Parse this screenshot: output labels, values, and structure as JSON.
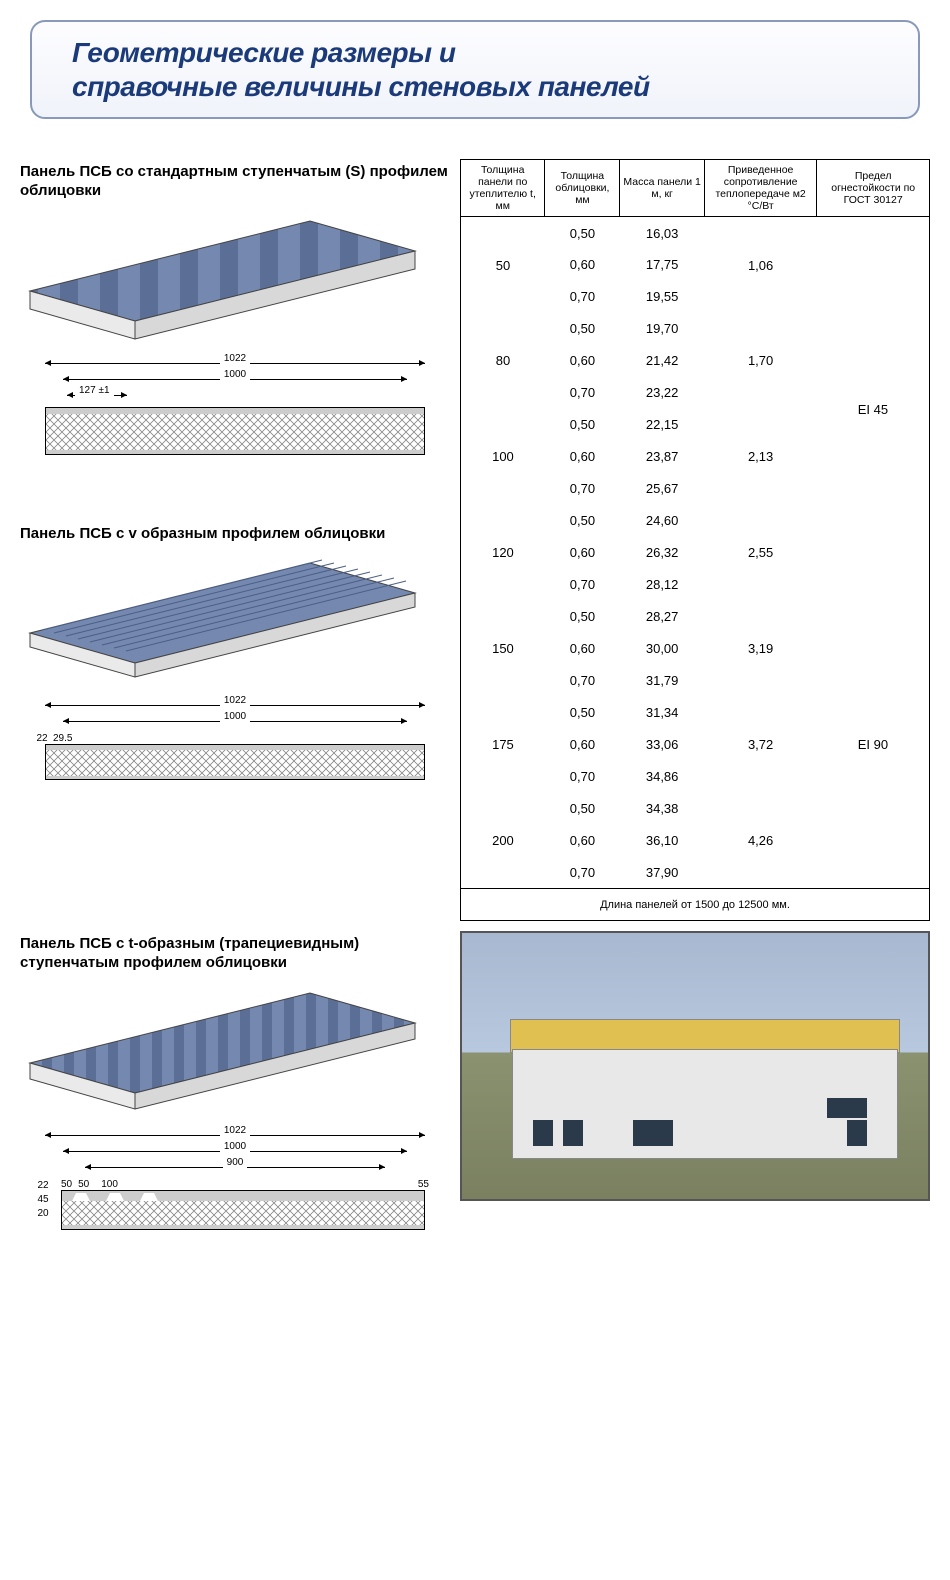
{
  "header": {
    "title_line1": "Геометрические размеры и",
    "title_line2": "справочные величины стеновых панелей"
  },
  "panels": [
    {
      "title": "Панель ПСБ со стандартным ступенчатым (S) профилем облицовки",
      "dim_outer": "1022",
      "dim_inner": "1000",
      "dim_sub": "127 ±1",
      "profile_color": "#6a7da8",
      "profile_edge": "#e8e8ea",
      "section_height": 48,
      "side_label": "",
      "seg_label_1": "",
      "seg_label_2": ""
    },
    {
      "title": "Панель ПСБ с v образным профилем облицовки",
      "dim_outer": "1022",
      "dim_inner": "1000",
      "dim_sub": "29.5",
      "profile_color": "#6a7da8",
      "profile_edge": "#e8e8ea",
      "section_height": 36,
      "side_label": "22",
      "seg_label_1": "",
      "seg_label_2": ""
    },
    {
      "title": "Панель ПСБ с t-образным (трапециевидным) ступенчатым профилем облицовки",
      "dim_outer": "1022",
      "dim_inner": "1000",
      "dim_sub": "900",
      "profile_color": "#6a7da8",
      "profile_edge": "#e8e8ea",
      "section_height": 40,
      "side_label": "20",
      "side_label2": "22",
      "right_label": "55",
      "seg_label_1": "50",
      "seg_label_2": "100",
      "seg_label_0": "45",
      "seg_label_00": "50"
    }
  ],
  "table": {
    "columns": [
      "Толщина панели по утеплителю t, мм",
      "Толщина облицовки, мм",
      "Масса панели 1 м, кг",
      "Приведенное сопротивление теплопередаче м2 °C/Вт",
      "Предел огнестойкости по ГОСТ 30127"
    ],
    "groups": [
      {
        "t": "50",
        "rows": [
          {
            "c": "0,50",
            "m": "16,03"
          },
          {
            "c": "0,60",
            "m": "17,75"
          },
          {
            "c": "0,70",
            "m": "19,55"
          }
        ],
        "r": "1,06",
        "fire": ""
      },
      {
        "t": "80",
        "rows": [
          {
            "c": "0,50",
            "m": "19,70"
          },
          {
            "c": "0,60",
            "m": "21,42"
          },
          {
            "c": "0,70",
            "m": "23,22"
          }
        ],
        "r": "1,70",
        "fire": "EI 45"
      },
      {
        "t": "100",
        "rows": [
          {
            "c": "0,50",
            "m": "22,15"
          },
          {
            "c": "0,60",
            "m": "23,87"
          },
          {
            "c": "0,70",
            "m": "25,67"
          }
        ],
        "r": "2,13",
        "fire": ""
      },
      {
        "t": "120",
        "rows": [
          {
            "c": "0,50",
            "m": "24,60"
          },
          {
            "c": "0,60",
            "m": "26,32"
          },
          {
            "c": "0,70",
            "m": "28,12"
          }
        ],
        "r": "2,55",
        "fire": ""
      },
      {
        "t": "150",
        "rows": [
          {
            "c": "0,50",
            "m": "28,27"
          },
          {
            "c": "0,60",
            "m": "30,00"
          },
          {
            "c": "0,70",
            "m": "31,79"
          }
        ],
        "r": "3,19",
        "fire": "EI 90"
      },
      {
        "t": "175",
        "rows": [
          {
            "c": "0,50",
            "m": "31,34"
          },
          {
            "c": "0,60",
            "m": "33,06"
          },
          {
            "c": "0,70",
            "m": "34,86"
          }
        ],
        "r": "3,72",
        "fire": ""
      },
      {
        "t": "200",
        "rows": [
          {
            "c": "0,50",
            "m": "34,38"
          },
          {
            "c": "0,60",
            "m": "36,10"
          },
          {
            "c": "0,70",
            "m": "37,90"
          }
        ],
        "r": "4,26",
        "fire": ""
      }
    ],
    "fire_span1_text": "EI 45",
    "fire_span2_text": "EI 90",
    "footer": "Длина панелей от 1500 до 12500 мм."
  },
  "colors": {
    "header_text": "#1a3a7a",
    "header_border": "#8899bb",
    "panel_steel": "#6a7da8",
    "panel_foam": "#ffffff",
    "hatch": "#777777"
  }
}
